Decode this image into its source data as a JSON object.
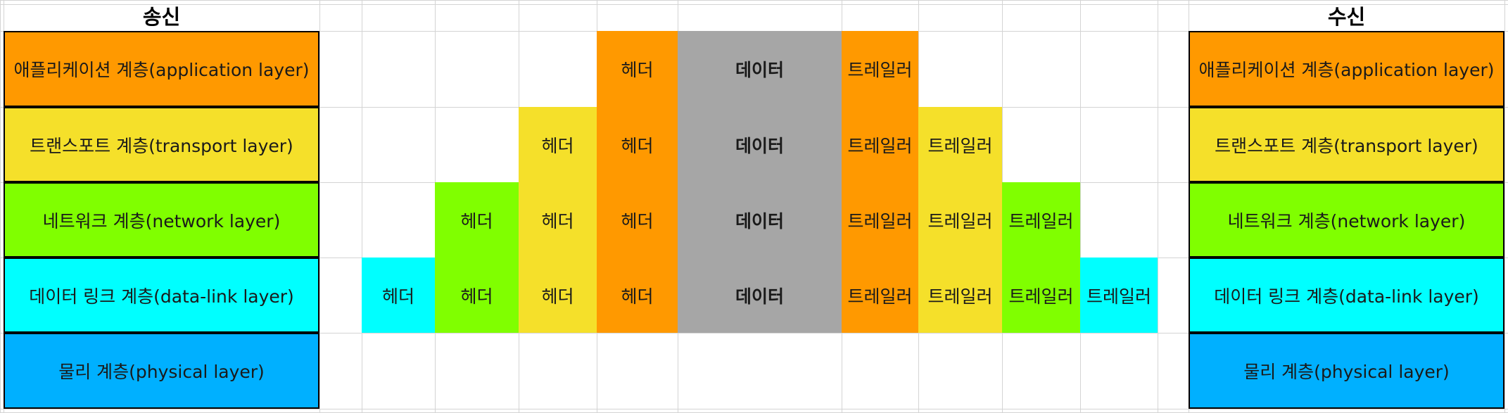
{
  "titles": {
    "sender": "송신",
    "receiver": "수신"
  },
  "layers": [
    {
      "label": "애플리케이션 계층(application layer)",
      "color": "#ff9900"
    },
    {
      "label": "트랜스포트 계층(transport layer)",
      "color": "#f5e02a"
    },
    {
      "label": "네트워크 계층(network layer)",
      "color": "#80ff00"
    },
    {
      "label": "데이터 링크 계층(data-link layer)",
      "color": "#00ffff"
    },
    {
      "label": "물리 계층(physical layer)",
      "color": "#00b0ff"
    }
  ],
  "labels": {
    "header": "헤더",
    "data": "데이터",
    "trailer": "트레일러"
  },
  "data_color": "#a6a6a6",
  "encapsulation": {
    "headers": [
      {
        "layer": 3,
        "rows": [
          3
        ]
      },
      {
        "layer": 2,
        "rows": [
          2,
          3
        ]
      },
      {
        "layer": 1,
        "rows": [
          1,
          2,
          3
        ]
      },
      {
        "layer": 0,
        "rows": [
          0,
          1,
          2,
          3
        ]
      }
    ],
    "data_rows": [
      0,
      1,
      2,
      3
    ],
    "trailers": [
      {
        "layer": 0,
        "rows": [
          0,
          1,
          2,
          3
        ]
      },
      {
        "layer": 1,
        "rows": [
          1,
          2,
          3
        ]
      },
      {
        "layer": 2,
        "rows": [
          2,
          3
        ]
      },
      {
        "layer": 3,
        "rows": [
          3
        ]
      }
    ]
  }
}
